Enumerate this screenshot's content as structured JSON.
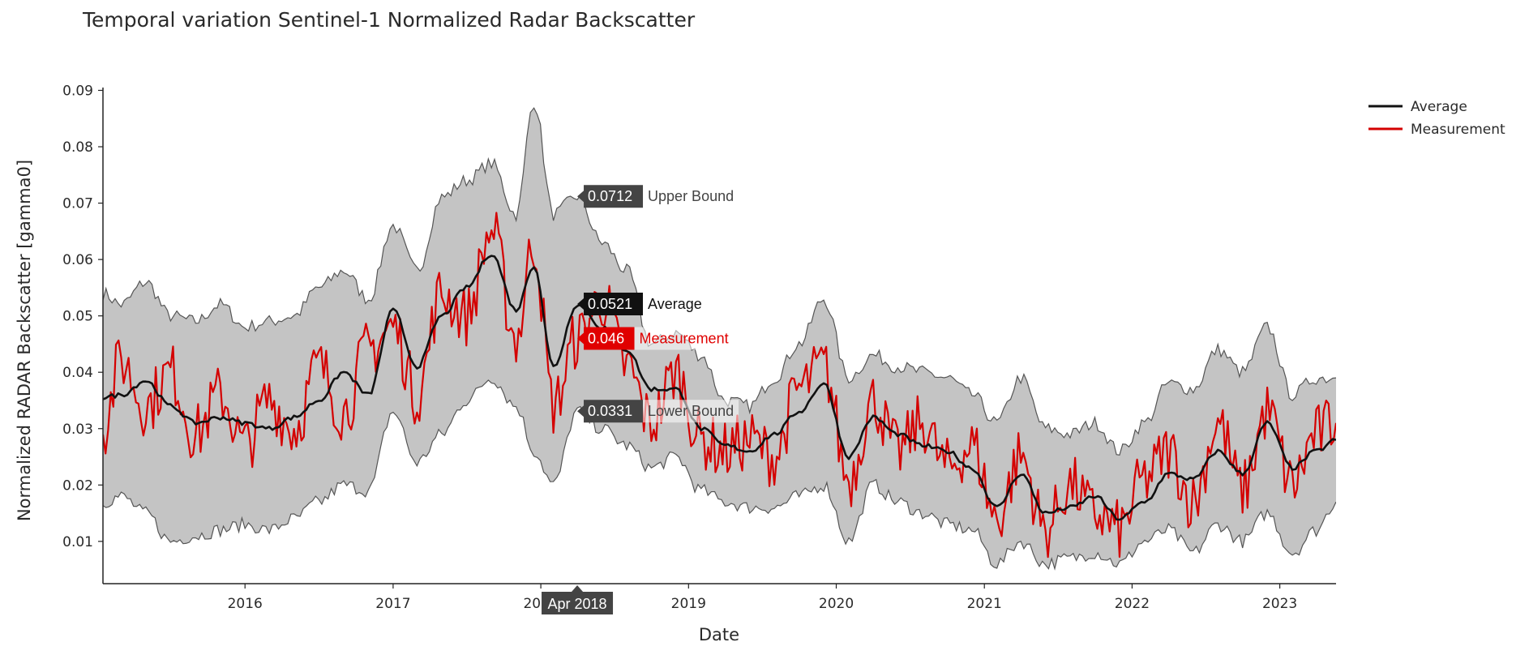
{
  "chart_data": {
    "type": "line",
    "title": "Temporal variation Sentinel-1 Normalized Radar Backscatter",
    "xlabel": "Date",
    "ylabel": "Normalized RADAR Backscatter [gamma0]",
    "x_range": [
      "2015-01-15",
      "2023-05-20"
    ],
    "ylim": [
      0.0025,
      0.0905
    ],
    "x_ticks": [
      "2016",
      "2017",
      "2018",
      "2019",
      "2020",
      "2021",
      "2022",
      "2023"
    ],
    "x_tick_values": [
      "2016-01-01",
      "2017-01-01",
      "2018-01-01",
      "2019-01-01",
      "2020-01-01",
      "2021-01-01",
      "2022-01-01",
      "2023-01-01"
    ],
    "y_ticks": [
      "0.01",
      "0.02",
      "0.03",
      "0.04",
      "0.05",
      "0.06",
      "0.07",
      "0.08",
      "0.09"
    ],
    "y_tick_values": [
      0.01,
      0.02,
      0.03,
      0.04,
      0.05,
      0.06,
      0.07,
      0.08,
      0.09
    ],
    "grid": false,
    "legend": {
      "position": "top-right",
      "entries": [
        "Average",
        "Measurement"
      ]
    },
    "colors": {
      "average": "#111111",
      "measurement": "#d40000",
      "band_fill": "#c4c4c4",
      "band_line": "#555555"
    },
    "series": [
      {
        "name": "Average",
        "x": [
          "2015-01-15",
          "2015-03-01",
          "2015-05-01",
          "2015-07-01",
          "2015-09-01",
          "2015-11-01",
          "2016-01-01",
          "2016-03-01",
          "2016-05-01",
          "2016-07-01",
          "2016-09-01",
          "2016-11-01",
          "2017-01-01",
          "2017-03-01",
          "2017-05-01",
          "2017-07-01",
          "2017-09-01",
          "2017-11-01",
          "2017-12-15",
          "2018-02-01",
          "2018-04-01",
          "2018-06-01",
          "2018-08-01",
          "2018-10-01",
          "2018-12-01",
          "2019-02-01",
          "2019-04-01",
          "2019-06-01",
          "2019-08-01",
          "2019-10-01",
          "2019-12-01",
          "2020-02-01",
          "2020-04-01",
          "2020-06-01",
          "2020-08-01",
          "2020-10-01",
          "2020-12-01",
          "2021-02-01",
          "2021-04-01",
          "2021-06-01",
          "2021-08-01",
          "2021-10-01",
          "2021-12-01",
          "2022-02-01",
          "2022-04-01",
          "2022-06-01",
          "2022-08-01",
          "2022-10-01",
          "2022-12-01",
          "2023-02-01",
          "2023-04-01",
          "2023-05-20"
        ],
        "values": [
          0.0355,
          0.036,
          0.0385,
          0.034,
          0.031,
          0.032,
          0.031,
          0.03,
          0.032,
          0.035,
          0.04,
          0.036,
          0.051,
          0.041,
          0.05,
          0.055,
          0.061,
          0.051,
          0.059,
          0.041,
          0.0521,
          0.048,
          0.044,
          0.037,
          0.037,
          0.03,
          0.027,
          0.026,
          0.029,
          0.033,
          0.038,
          0.025,
          0.032,
          0.029,
          0.027,
          0.026,
          0.023,
          0.016,
          0.022,
          0.015,
          0.016,
          0.018,
          0.014,
          0.017,
          0.022,
          0.021,
          0.026,
          0.022,
          0.031,
          0.023,
          0.026,
          0.028
        ]
      },
      {
        "name": "Measurement",
        "x": [
          "2015-01-15",
          "2015-03-01",
          "2015-05-01",
          "2015-07-01",
          "2015-09-01",
          "2015-11-01",
          "2016-01-01",
          "2016-03-01",
          "2016-05-01",
          "2016-07-01",
          "2016-09-01",
          "2016-11-01",
          "2017-01-01",
          "2017-03-01",
          "2017-05-01",
          "2017-07-01",
          "2017-09-01",
          "2017-11-01",
          "2017-12-15",
          "2018-02-01",
          "2018-04-01",
          "2018-06-01",
          "2018-08-01",
          "2018-10-01",
          "2018-12-01",
          "2019-02-01",
          "2019-04-01",
          "2019-06-01",
          "2019-08-01",
          "2019-10-01",
          "2019-12-01",
          "2020-02-01",
          "2020-04-01",
          "2020-06-01",
          "2020-08-01",
          "2020-10-01",
          "2020-12-01",
          "2021-02-01",
          "2021-04-01",
          "2021-06-01",
          "2021-08-01",
          "2021-10-01",
          "2021-12-01",
          "2022-02-01",
          "2022-04-01",
          "2022-06-01",
          "2022-08-01",
          "2022-10-01",
          "2022-12-01",
          "2023-02-01",
          "2023-04-01",
          "2023-05-20"
        ],
        "values": [
          0.03,
          0.042,
          0.034,
          0.04,
          0.029,
          0.036,
          0.027,
          0.035,
          0.03,
          0.041,
          0.033,
          0.044,
          0.048,
          0.036,
          0.054,
          0.05,
          0.065,
          0.046,
          0.063,
          0.034,
          0.046,
          0.053,
          0.041,
          0.031,
          0.04,
          0.028,
          0.026,
          0.028,
          0.025,
          0.037,
          0.041,
          0.021,
          0.035,
          0.026,
          0.031,
          0.023,
          0.027,
          0.014,
          0.025,
          0.012,
          0.02,
          0.015,
          0.012,
          0.021,
          0.026,
          0.017,
          0.031,
          0.019,
          0.033,
          0.02,
          0.029,
          0.031
        ]
      }
    ],
    "bounds": {
      "x": [
        "2015-01-15",
        "2015-03-01",
        "2015-05-01",
        "2015-07-01",
        "2015-09-01",
        "2015-11-01",
        "2016-01-01",
        "2016-03-01",
        "2016-05-01",
        "2016-07-01",
        "2016-09-01",
        "2016-11-01",
        "2017-01-01",
        "2017-03-01",
        "2017-05-01",
        "2017-07-01",
        "2017-09-01",
        "2017-11-01",
        "2017-12-15",
        "2018-02-01",
        "2018-04-01",
        "2018-06-01",
        "2018-08-01",
        "2018-10-01",
        "2018-12-01",
        "2019-02-01",
        "2019-04-01",
        "2019-06-01",
        "2019-08-01",
        "2019-10-01",
        "2019-12-01",
        "2020-02-01",
        "2020-04-01",
        "2020-06-01",
        "2020-08-01",
        "2020-10-01",
        "2020-12-01",
        "2021-02-01",
        "2021-04-01",
        "2021-06-01",
        "2021-08-01",
        "2021-10-01",
        "2021-12-01",
        "2022-02-01",
        "2022-04-01",
        "2022-06-01",
        "2022-08-01",
        "2022-10-01",
        "2022-12-01",
        "2023-02-01",
        "2023-04-01",
        "2023-05-20"
      ],
      "upper": [
        0.054,
        0.052,
        0.056,
        0.05,
        0.049,
        0.052,
        0.048,
        0.049,
        0.05,
        0.055,
        0.058,
        0.053,
        0.066,
        0.058,
        0.071,
        0.074,
        0.077,
        0.068,
        0.088,
        0.068,
        0.0712,
        0.063,
        0.058,
        0.045,
        0.047,
        0.043,
        0.035,
        0.034,
        0.039,
        0.045,
        0.053,
        0.039,
        0.043,
        0.041,
        0.04,
        0.039,
        0.036,
        0.031,
        0.039,
        0.03,
        0.029,
        0.031,
        0.026,
        0.031,
        0.038,
        0.037,
        0.044,
        0.04,
        0.048,
        0.036,
        0.039,
        0.039
      ],
      "lower": [
        0.017,
        0.018,
        0.015,
        0.01,
        0.011,
        0.012,
        0.013,
        0.012,
        0.014,
        0.017,
        0.02,
        0.019,
        0.033,
        0.024,
        0.029,
        0.035,
        0.039,
        0.034,
        0.026,
        0.02,
        0.0331,
        0.03,
        0.027,
        0.023,
        0.025,
        0.019,
        0.017,
        0.016,
        0.016,
        0.018,
        0.02,
        0.01,
        0.02,
        0.017,
        0.015,
        0.013,
        0.012,
        0.006,
        0.01,
        0.006,
        0.007,
        0.008,
        0.006,
        0.01,
        0.012,
        0.008,
        0.013,
        0.01,
        0.015,
        0.008,
        0.012,
        0.017
      ]
    },
    "hover": {
      "date_label": "Apr 2018",
      "date": "2018-04-01",
      "upper": {
        "value": "0.0712",
        "label": "Upper Bound"
      },
      "average": {
        "value": "0.0521",
        "label": "Average"
      },
      "measurement": {
        "value": "0.046",
        "label": "Measurement"
      },
      "lower": {
        "value": "0.0331",
        "label": "Lower Bound"
      }
    }
  }
}
